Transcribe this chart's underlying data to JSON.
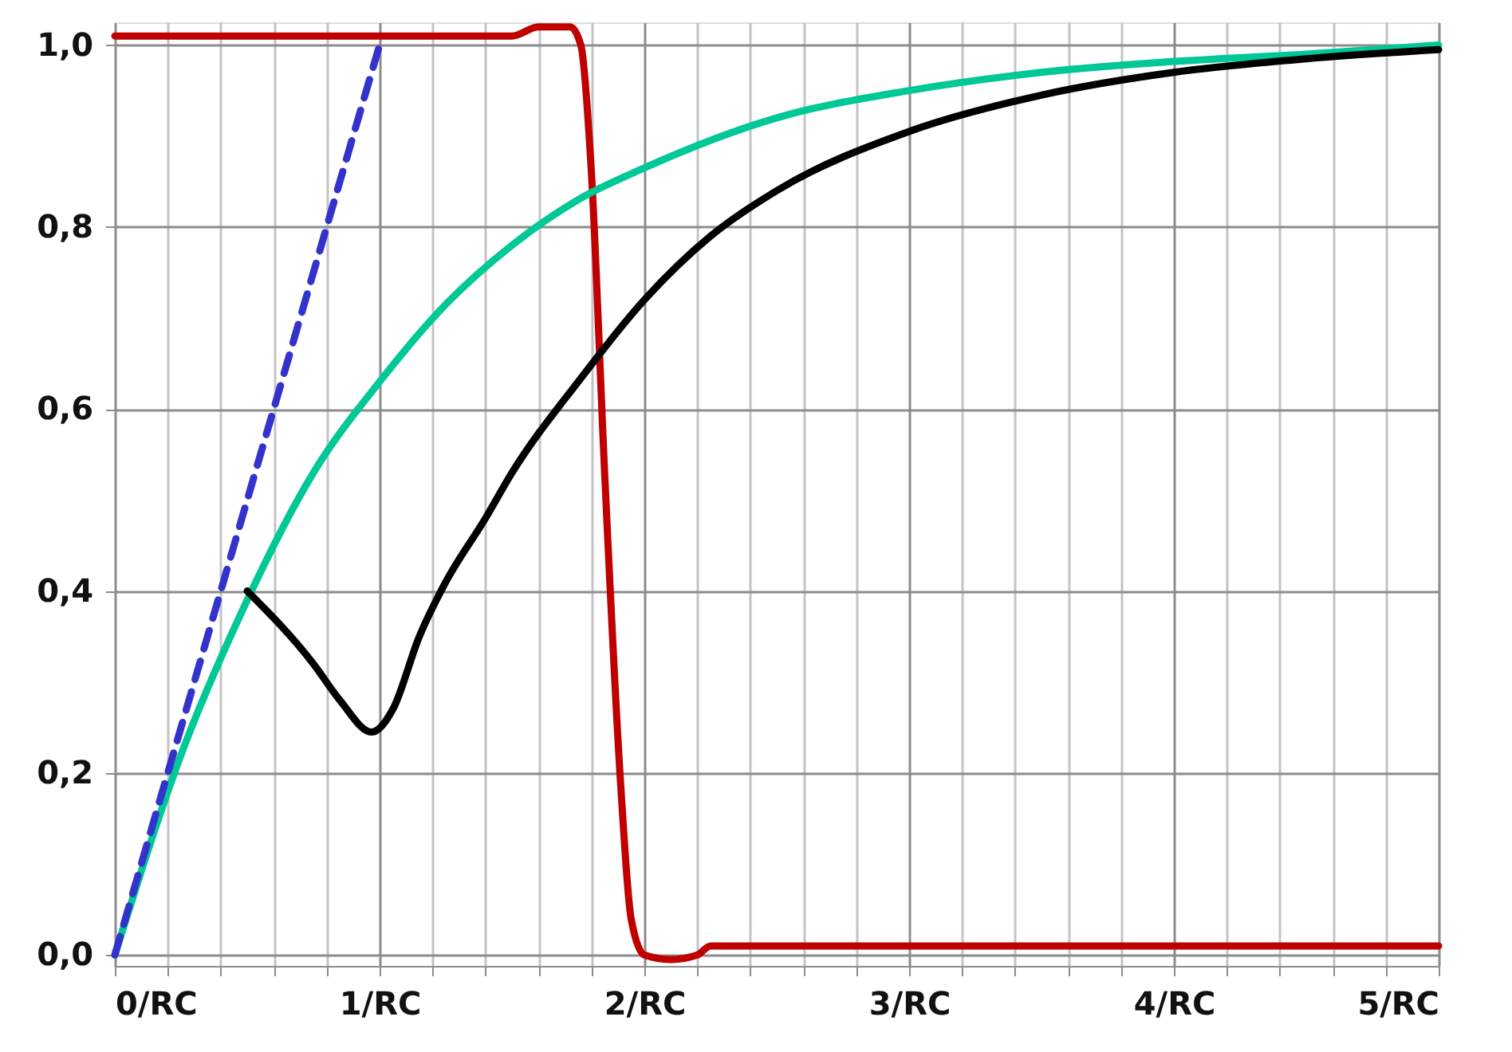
{
  "chart_data": {
    "type": "line",
    "xlim": [
      0,
      5
    ],
    "xticks": [
      {
        "value": 0,
        "label": "0/RC"
      },
      {
        "value": 0.2,
        "label": null
      },
      {
        "value": 0.4,
        "label": null
      },
      {
        "value": 0.6,
        "label": null
      },
      {
        "value": 0.8,
        "label": null
      },
      {
        "value": 1,
        "label": "1/RC"
      },
      {
        "value": 1.2,
        "label": null
      },
      {
        "value": 1.4,
        "label": null
      },
      {
        "value": 1.6,
        "label": null
      },
      {
        "value": 1.8,
        "label": null
      },
      {
        "value": 2,
        "label": "2/RC"
      },
      {
        "value": 2.2,
        "label": null
      },
      {
        "value": 2.4,
        "label": null
      },
      {
        "value": 2.6,
        "label": null
      },
      {
        "value": 2.8,
        "label": null
      },
      {
        "value": 3,
        "label": "3/RC"
      },
      {
        "value": 3.2,
        "label": null
      },
      {
        "value": 3.4,
        "label": null
      },
      {
        "value": 3.6,
        "label": null
      },
      {
        "value": 3.8,
        "label": null
      },
      {
        "value": 4,
        "label": "4/RC"
      },
      {
        "value": 4.2,
        "label": null
      },
      {
        "value": 4.4,
        "label": null
      },
      {
        "value": 4.6,
        "label": null
      },
      {
        "value": 4.8,
        "label": null
      },
      {
        "value": 5,
        "label": "5/RC"
      }
    ],
    "ylim": [
      -0.012,
      1.025
    ],
    "yticks": [
      {
        "value": 0,
        "label": "0,0"
      },
      {
        "value": 0.2,
        "label": "0,2"
      },
      {
        "value": 0.4,
        "label": "0,4"
      },
      {
        "value": 0.6,
        "label": "0,6"
      },
      {
        "value": 0.8,
        "label": "0,8"
      },
      {
        "value": 1,
        "label": "1,0"
      }
    ],
    "grid": true,
    "marker": "none",
    "series": [
      {
        "color": "#c00000",
        "line_style": "solid",
        "x": [
          0,
          1.5,
          1.6,
          1.72,
          1.76,
          1.8,
          1.85,
          1.91,
          1.95,
          2.0,
          2.1,
          2.2,
          2.25,
          5
        ],
        "values": [
          1.01,
          1.01,
          1.02,
          1.02,
          1.0,
          0.86,
          0.53,
          0.19,
          0.04,
          0.0,
          -0.005,
          0.0,
          0.01,
          0.01
        ]
      },
      {
        "color": "#00c896",
        "line_style": "solid",
        "x": [
          0,
          0.25,
          0.5,
          0.75,
          1,
          1.25,
          1.5,
          1.75,
          2,
          2.5,
          3,
          3.5,
          4,
          4.5,
          5
        ],
        "values": [
          0,
          0.22,
          0.39,
          0.53,
          0.63,
          0.715,
          0.78,
          0.83,
          0.865,
          0.92,
          0.95,
          0.97,
          0.982,
          0.99,
          1.0
        ]
      },
      {
        "color": "#000000",
        "line_style": "solid",
        "x": [
          0.5,
          0.75,
          0.85,
          0.97,
          1.05,
          1.15,
          1.25,
          1.4,
          1.5,
          1.75,
          2,
          2.25,
          2.5,
          3,
          3.5,
          4,
          4.5,
          5
        ],
        "values": [
          0.4,
          0.32,
          0.28,
          0.245,
          0.27,
          0.35,
          0.41,
          0.48,
          0.53,
          0.63,
          0.72,
          0.79,
          0.84,
          0.905,
          0.945,
          0.97,
          0.985,
          0.995
        ]
      },
      {
        "color": "#3333cc",
        "line_style": "dashed",
        "x": [
          0,
          1
        ],
        "values": [
          0,
          1
        ]
      }
    ]
  }
}
